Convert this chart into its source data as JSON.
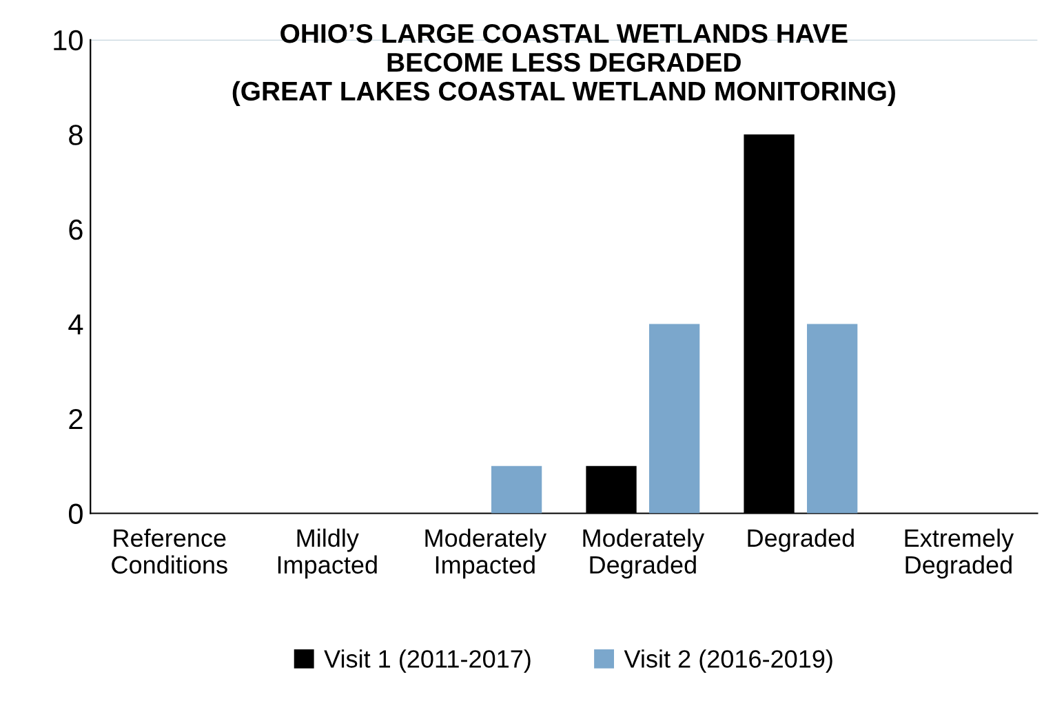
{
  "chart_data": {
    "type": "bar",
    "title": "OHIO’S LARGE COASTAL WETLANDS HAVE\nBECOME LESS DEGRADED\n(GREAT LAKES COASTAL WETLAND MONITORING)",
    "categories": [
      "Reference\nConditions",
      "Mildly\nImpacted",
      "Moderately\nImpacted",
      "Moderately\nDegraded",
      "Degraded",
      "Extremely\nDegraded"
    ],
    "series": [
      {
        "name": "Visit 1 (2011-2017)",
        "color": "#000000",
        "values": [
          0,
          0,
          0,
          1,
          8,
          0
        ]
      },
      {
        "name": "Visit 2 (2016-2019)",
        "color": "#7ba7cc",
        "values": [
          0,
          0,
          1,
          4,
          4,
          0
        ]
      }
    ],
    "ylim": [
      0,
      10
    ],
    "yticks": [
      0,
      2,
      4,
      6,
      8,
      10
    ],
    "grid": false,
    "legend": "bottom",
    "ref_lines": [
      {
        "axis": "y",
        "value": 10,
        "color": "#b7cbd6"
      }
    ]
  }
}
